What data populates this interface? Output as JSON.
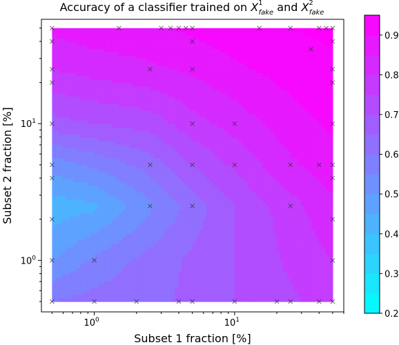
{
  "chart_data": {
    "type": "heatmap",
    "subtype": "filled-contour",
    "title_parts": {
      "prefix": "Accuracy of a classifier trained on ",
      "sym1": "X",
      "sup1": "1",
      "sub1": "fake",
      "conj": " and ",
      "sym2": "X",
      "sup2": "2",
      "sub2": "fake"
    },
    "xlabel": "Subset 1 fraction [%]",
    "ylabel": "Subset 2 fraction [%]",
    "xscale": "log",
    "yscale": "log",
    "xlim": [
      0.42,
      60
    ],
    "ylim": [
      0.42,
      58
    ],
    "x_major_ticks": [
      1,
      10
    ],
    "y_major_ticks": [
      1,
      10
    ],
    "x_major_labels": [
      "10",
      "10"
    ],
    "x_major_exps": [
      "0",
      "1"
    ],
    "y_major_labels": [
      "10",
      "10"
    ],
    "y_major_exps": [
      "0",
      "1"
    ],
    "grid": [
      0.5,
      1,
      2.5,
      5,
      10,
      25,
      50
    ],
    "accuracy": [
      [
        0.6,
        0.62,
        0.64,
        0.66,
        0.7,
        0.74,
        0.78
      ],
      [
        0.5,
        0.56,
        0.62,
        0.66,
        0.7,
        0.76,
        0.8
      ],
      [
        0.42,
        0.44,
        0.54,
        0.62,
        0.7,
        0.78,
        0.84
      ],
      [
        0.52,
        0.56,
        0.62,
        0.7,
        0.76,
        0.84,
        0.88
      ],
      [
        0.68,
        0.7,
        0.72,
        0.78,
        0.82,
        0.88,
        0.91
      ],
      [
        0.8,
        0.82,
        0.84,
        0.86,
        0.89,
        0.92,
        0.94
      ],
      [
        0.86,
        0.88,
        0.89,
        0.91,
        0.93,
        0.95,
        0.96
      ]
    ],
    "sample_points": [
      [
        0.5,
        0.5
      ],
      [
        1,
        0.5
      ],
      [
        2,
        0.5
      ],
      [
        4,
        0.5
      ],
      [
        5,
        0.5
      ],
      [
        10,
        0.5
      ],
      [
        20,
        0.5
      ],
      [
        25,
        0.5
      ],
      [
        40,
        0.5
      ],
      [
        50,
        0.5
      ],
      [
        0.5,
        1
      ],
      [
        1,
        1
      ],
      [
        50,
        1
      ],
      [
        0.5,
        2
      ],
      [
        50,
        2
      ],
      [
        2.5,
        2.5
      ],
      [
        5,
        2.5
      ],
      [
        25,
        2.5
      ],
      [
        0.5,
        4
      ],
      [
        50,
        4
      ],
      [
        0.5,
        5
      ],
      [
        2.5,
        5
      ],
      [
        5,
        5
      ],
      [
        10,
        5
      ],
      [
        25,
        5
      ],
      [
        40,
        5
      ],
      [
        50,
        5
      ],
      [
        0.5,
        10
      ],
      [
        5,
        10
      ],
      [
        10,
        10
      ],
      [
        50,
        10
      ],
      [
        0.5,
        20
      ],
      [
        50,
        20
      ],
      [
        0.5,
        25
      ],
      [
        2.5,
        25
      ],
      [
        5,
        25
      ],
      [
        50,
        25
      ],
      [
        35,
        35
      ],
      [
        0.5,
        40
      ],
      [
        5,
        40
      ],
      [
        50,
        40
      ],
      [
        0.5,
        50
      ],
      [
        1.5,
        50
      ],
      [
        3,
        50
      ],
      [
        3.5,
        50
      ],
      [
        4,
        50
      ],
      [
        4.5,
        50
      ],
      [
        5,
        50
      ],
      [
        15,
        50
      ],
      [
        25,
        50
      ],
      [
        40,
        50
      ],
      [
        45,
        50
      ],
      [
        50,
        50
      ]
    ],
    "colorbar": {
      "min": 0.2,
      "max": 0.95,
      "ticks": [
        0.2,
        0.3,
        0.4,
        0.5,
        0.6,
        0.7,
        0.8,
        0.9
      ],
      "tick_labels": [
        "0.2",
        "0.3",
        "0.4",
        "0.5",
        "0.6",
        "0.7",
        "0.8",
        "0.9"
      ],
      "colormap": "cool",
      "color_low": "#00ffff",
      "color_high": "#ff00ff"
    },
    "legend": "none"
  }
}
